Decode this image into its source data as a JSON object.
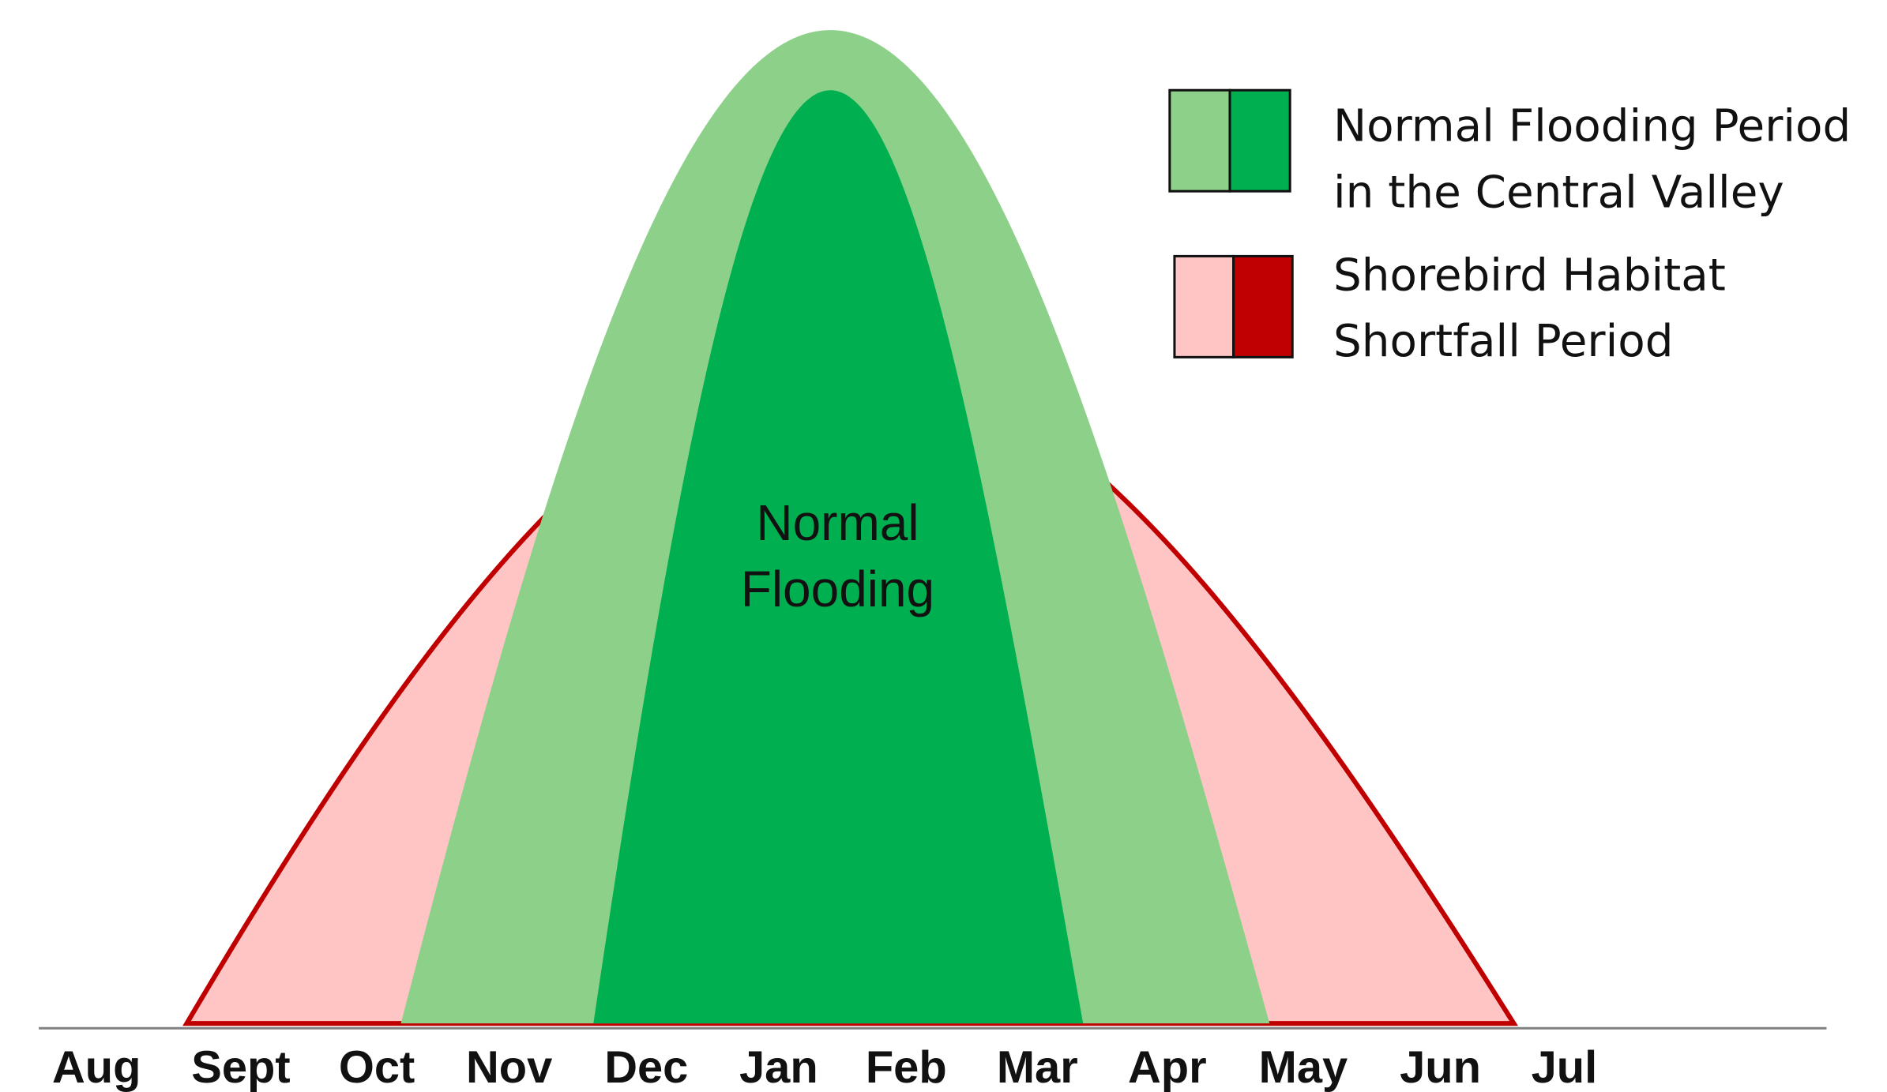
{
  "months": [
    "Aug",
    "Sept",
    "Oct",
    "Nov",
    "Dec",
    "Jan",
    "Feb",
    "Mar",
    "Apr",
    "May",
    "Jun",
    "Jul"
  ],
  "annotation": [
    "Normal",
    "Flooding"
  ],
  "legend": [
    {
      "lines": [
        "Normal Flooding Period",
        "in the Central Valley"
      ]
    },
    {
      "lines": [
        "Shorebird Habitat",
        "Shortfall Period"
      ]
    }
  ]
}
